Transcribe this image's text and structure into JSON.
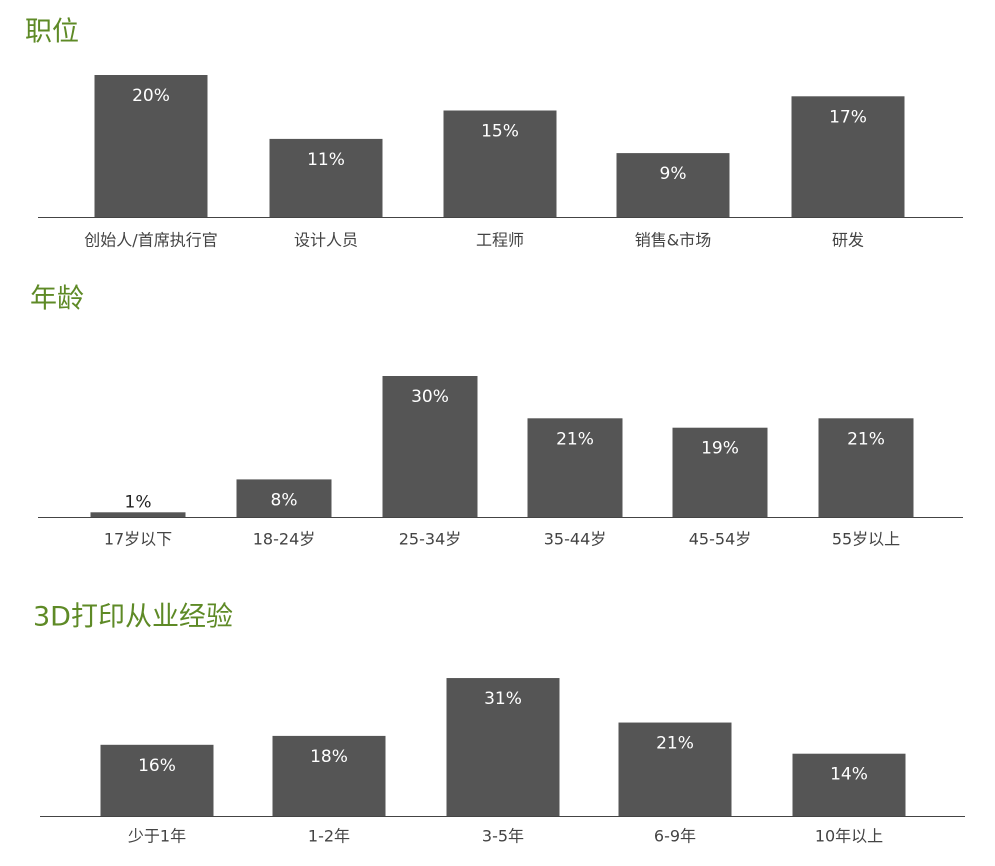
{
  "chart_data": [
    {
      "type": "bar",
      "title": "职位",
      "categories": [
        "创始人/首席执行官",
        "设计人员",
        "工程师",
        "销售&市场",
        "研发"
      ],
      "values": [
        20,
        11,
        15,
        9,
        17
      ],
      "value_labels": [
        "20%",
        "11%",
        "15%",
        "9%",
        "17%"
      ],
      "color": "#555555"
    },
    {
      "type": "bar",
      "title": "年龄",
      "categories": [
        "17岁以下",
        "18-24岁",
        "25-34岁",
        "35-44岁",
        "45-54岁",
        "55岁以上"
      ],
      "values": [
        1,
        8,
        30,
        21,
        19,
        21
      ],
      "value_labels": [
        "1%",
        "8%",
        "30%",
        "21%",
        "19%",
        "21%"
      ],
      "color": "#555555"
    },
    {
      "type": "bar",
      "title": "3D打印从业经验",
      "categories": [
        "少于1年",
        "1-2年",
        "3-5年",
        "6-9年",
        "10年以上"
      ],
      "values": [
        16,
        18,
        31,
        21,
        14
      ],
      "value_labels": [
        "16%",
        "18%",
        "31%",
        "21%",
        "14%"
      ],
      "color": "#555555"
    }
  ]
}
